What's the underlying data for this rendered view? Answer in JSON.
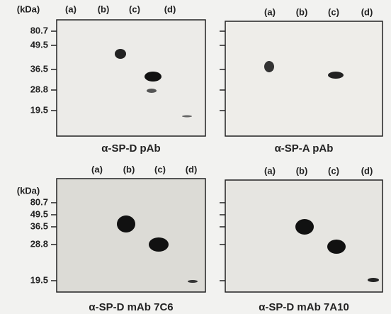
{
  "units": "(kDa)",
  "markers": [
    "80.7",
    "49.5",
    "36.5",
    "28.8",
    "19.5"
  ],
  "lanes": [
    "(a)",
    "(b)",
    "(c)",
    "(d)"
  ],
  "panels": [
    {
      "caption": "α-SP-D pAb"
    },
    {
      "caption": "α-SP-A pAb"
    },
    {
      "caption": "α-SP-D mAb 7C6"
    },
    {
      "caption": "α-SP-D mAb 7A10"
    }
  ]
}
